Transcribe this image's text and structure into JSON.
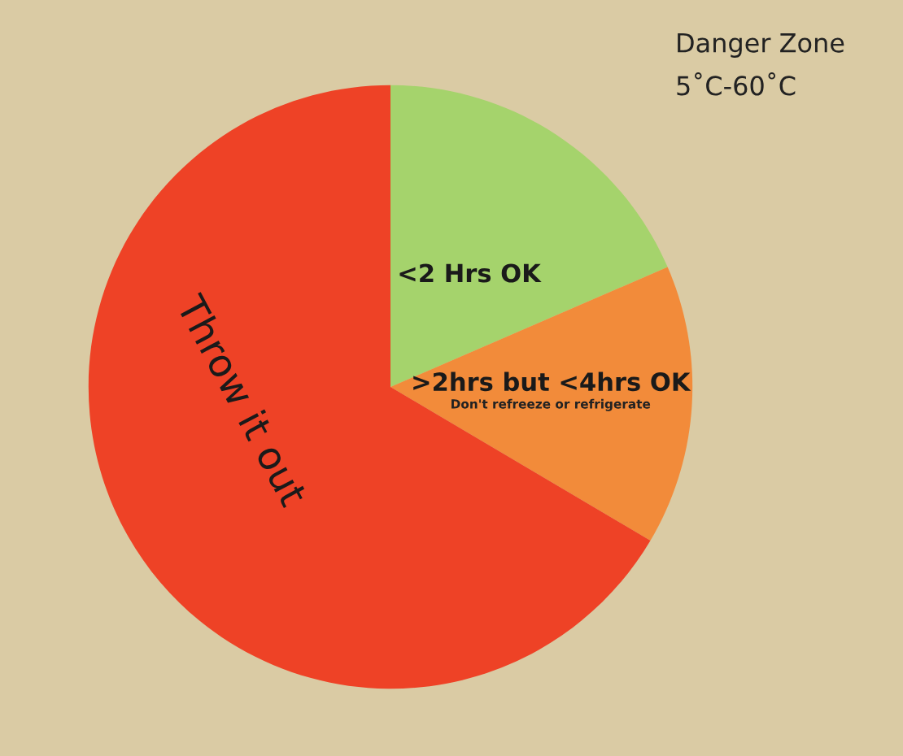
{
  "chart_data": {
    "type": "pie",
    "categories": [
      "<2 Hrs OK",
      ">2hrs but <4hrs OK",
      "Throw it out"
    ],
    "values": [
      18.5,
      15,
      66.5
    ],
    "colors": [
      "#a5d36c",
      "#f28b3a",
      "#ee4226"
    ],
    "annotations": [
      "Danger Zone\n5˚C-60˚C",
      "Don't refreeze or refrigerate"
    ],
    "legend": false
  }
}
